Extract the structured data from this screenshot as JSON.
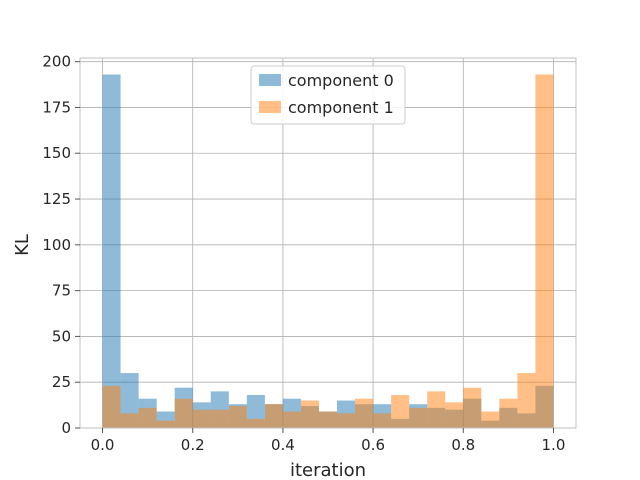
{
  "chart_data": {
    "type": "bar",
    "subtype": "overlapping-histogram",
    "title": "",
    "xlabel": "iteration",
    "ylabel": "KL",
    "xlim": [
      -0.05,
      1.05
    ],
    "ylim": [
      0,
      202
    ],
    "xticks": [
      0.0,
      0.2,
      0.4,
      0.6,
      0.8,
      1.0
    ],
    "xtick_labels": [
      "0.0",
      "0.2",
      "0.4",
      "0.6",
      "0.8",
      "1.0"
    ],
    "yticks": [
      0,
      25,
      50,
      75,
      100,
      125,
      150,
      175,
      200
    ],
    "ytick_labels": [
      "0",
      "25",
      "50",
      "75",
      "100",
      "125",
      "150",
      "175",
      "200"
    ],
    "grid": true,
    "legend_position": "upper-center",
    "bin_edges": [
      0.0,
      0.04,
      0.08,
      0.12,
      0.16,
      0.2,
      0.24,
      0.28,
      0.32,
      0.36,
      0.4,
      0.44,
      0.48,
      0.52,
      0.56,
      0.6,
      0.64,
      0.68,
      0.72,
      0.76,
      0.8,
      0.84,
      0.88,
      0.92,
      0.96,
      1.0
    ],
    "series": [
      {
        "name": "component 0",
        "color": "#1f77b4",
        "opacity": 0.5,
        "values": [
          193,
          30,
          16,
          9,
          22,
          14,
          20,
          13,
          18,
          13,
          16,
          12,
          9,
          15,
          13,
          13,
          5,
          13,
          11,
          10,
          16,
          4,
          11,
          8,
          23
        ]
      },
      {
        "name": "component 1",
        "color": "#ff7f0e",
        "opacity": 0.5,
        "values": [
          23,
          8,
          11,
          4,
          16,
          10,
          10,
          12,
          5,
          13,
          9,
          15,
          9,
          8,
          16,
          8,
          18,
          11,
          20,
          14,
          22,
          9,
          16,
          30,
          193
        ]
      }
    ]
  }
}
